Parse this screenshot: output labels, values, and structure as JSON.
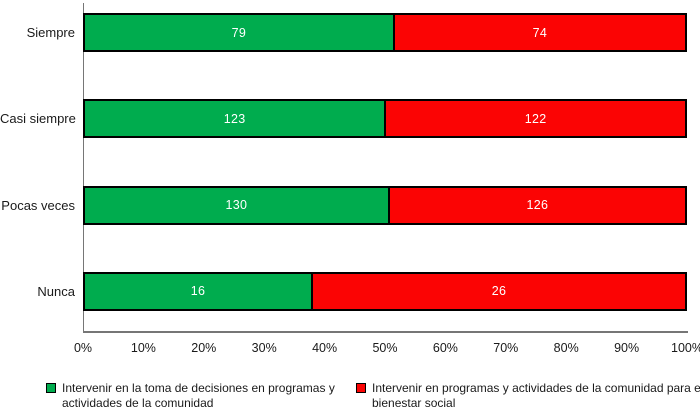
{
  "chart_data": {
    "type": "bar",
    "orientation": "horizontal",
    "stacked": true,
    "title": "",
    "categories": [
      "Siempre",
      "Casi siempre",
      "Pocas veces",
      "Nunca"
    ],
    "series": [
      {
        "name": "Intervenir en la toma de decisiones en programas y actividades de la comunidad",
        "color": "#00AC4E",
        "values": [
          79,
          123,
          130,
          16
        ]
      },
      {
        "name": "Intervenir en programas y actividades de la comunidad para el bienestar social",
        "color": "#FB0404",
        "values": [
          74,
          122,
          126,
          26
        ]
      }
    ],
    "x_axis": {
      "min": 0,
      "max": 100,
      "unit": "percent",
      "ticks": [
        "0%",
        "10%",
        "20%",
        "30%",
        "40%",
        "50%",
        "60%",
        "70%",
        "80%",
        "90%",
        "100%"
      ]
    },
    "value_labels_shown": true,
    "grid": false,
    "legend_position": "bottom"
  },
  "colors": {
    "series_green": "#00AC4E",
    "series_red": "#FB0404",
    "bar_border": "#000000",
    "axis_line": "#767676",
    "value_text": "#ffffff",
    "label_text": "#1a1a1a",
    "background": "#ffffff"
  }
}
